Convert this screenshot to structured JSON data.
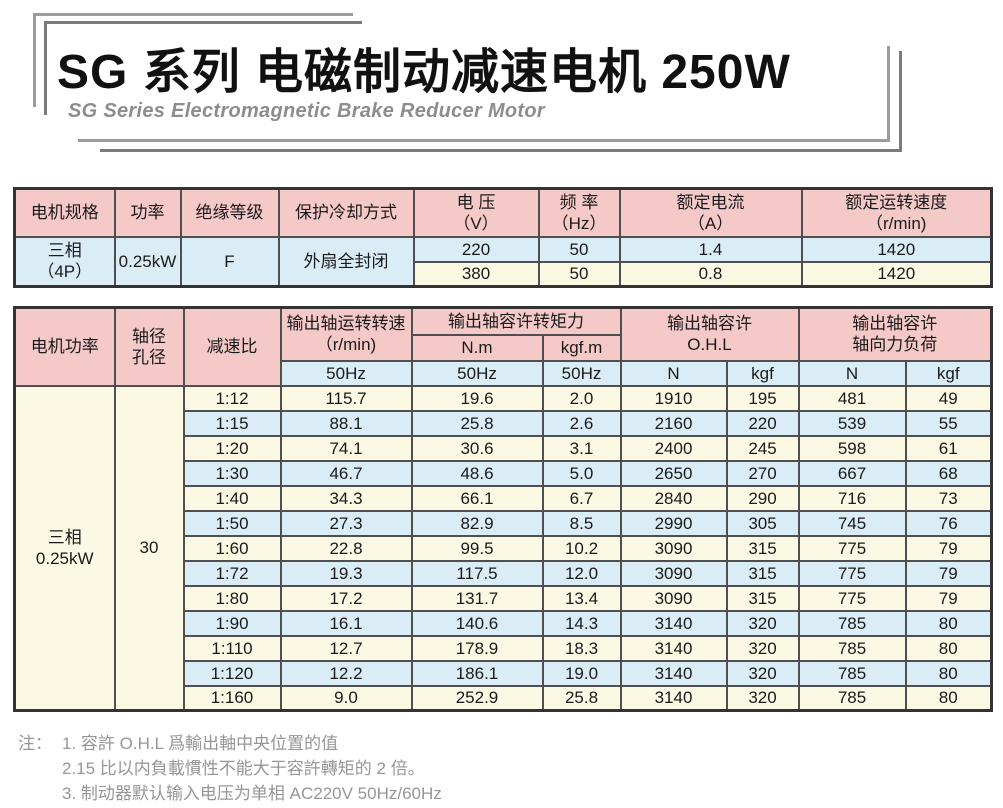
{
  "title": {
    "zh": "SG 系列 电磁制动减速电机 250W",
    "en": "SG Series Electromagnetic Brake Reducer Motor"
  },
  "colors": {
    "header_pink": "#f6c9c9",
    "row_blue": "#daecf6",
    "row_cream": "#fbf8e3",
    "table_border_inner": "#4f4f4f",
    "table_border_outer": "#333333",
    "note_gray": "#969696",
    "frame_gray_light": "#9c9c9c",
    "frame_gray_dark": "#7b7b7b",
    "subtitle_gray": "#8d8d8d"
  },
  "spec_table": {
    "headers": {
      "motor_spec": "电机规格",
      "power": "功率",
      "insulation": "绝缘等级",
      "cooling": "保护冷却方式",
      "voltage_l1": "电 压",
      "voltage_l2": "（V）",
      "freq_l1": "频 率",
      "freq_l2": "（Hz）",
      "current_l1": "额定电流",
      "current_l2": "（A）",
      "speed_l1": "额定运转速度",
      "speed_l2": "（r/min)"
    },
    "body": {
      "spec_l1": "三相",
      "spec_l2": "（4P）",
      "power": "0.25kW",
      "insulation": "F",
      "cooling": "外扇全封闭",
      "rows": [
        [
          "220",
          "50",
          "1.4",
          "1420"
        ],
        [
          "380",
          "50",
          "0.8",
          "1420"
        ]
      ]
    }
  },
  "ratio_table": {
    "headers": {
      "motor_power": "电机功率",
      "shaft_l1": "轴径",
      "shaft_l2": "孔径",
      "ratio": "减速比",
      "speed_l1": "输出轴运转转速",
      "speed_l2": "（r/min)",
      "torque_group": "输出轴容许转矩力",
      "unit_nm": "N.m",
      "unit_kgfm": "kgf.m",
      "ohl_l1": "输出轴容许",
      "ohl_l2": "O.H.L",
      "axial_l1": "输出轴容许",
      "axial_l2": "轴向力负荷",
      "freq": "50Hz",
      "unit_n": "N",
      "unit_kgf": "kgf"
    },
    "body": {
      "power_l1": "三相",
      "power_l2": "0.25kW",
      "shaft": "30",
      "rows": [
        [
          "1:12",
          "115.7",
          "19.6",
          "2.0",
          "1910",
          "195",
          "481",
          "49"
        ],
        [
          "1:15",
          "88.1",
          "25.8",
          "2.6",
          "2160",
          "220",
          "539",
          "55"
        ],
        [
          "1:20",
          "74.1",
          "30.6",
          "3.1",
          "2400",
          "245",
          "598",
          "61"
        ],
        [
          "1:30",
          "46.7",
          "48.6",
          "5.0",
          "2650",
          "270",
          "667",
          "68"
        ],
        [
          "1:40",
          "34.3",
          "66.1",
          "6.7",
          "2840",
          "290",
          "716",
          "73"
        ],
        [
          "1:50",
          "27.3",
          "82.9",
          "8.5",
          "2990",
          "305",
          "745",
          "76"
        ],
        [
          "1:60",
          "22.8",
          "99.5",
          "10.2",
          "3090",
          "315",
          "775",
          "79"
        ],
        [
          "1:72",
          "19.3",
          "117.5",
          "12.0",
          "3090",
          "315",
          "775",
          "79"
        ],
        [
          "1:80",
          "17.2",
          "131.7",
          "13.4",
          "3090",
          "315",
          "775",
          "79"
        ],
        [
          "1:90",
          "16.1",
          "140.6",
          "14.3",
          "3140",
          "320",
          "785",
          "80"
        ],
        [
          "1:110",
          "12.7",
          "178.9",
          "18.3",
          "3140",
          "320",
          "785",
          "80"
        ],
        [
          "1:120",
          "12.2",
          "186.1",
          "19.0",
          "3140",
          "320",
          "785",
          "80"
        ],
        [
          "1:160",
          "9.0",
          "252.9",
          "25.8",
          "3140",
          "320",
          "785",
          "80"
        ]
      ]
    }
  },
  "notes": {
    "label": "注：",
    "items": [
      "1. 容許 O.H.L 爲輸出軸中央位置的值",
      "2.15 比以内負載慣性不能大于容許轉矩的 2 倍。",
      "3. 制动器默认输入电压为单相 AC220V 50Hz/60Hz"
    ]
  }
}
